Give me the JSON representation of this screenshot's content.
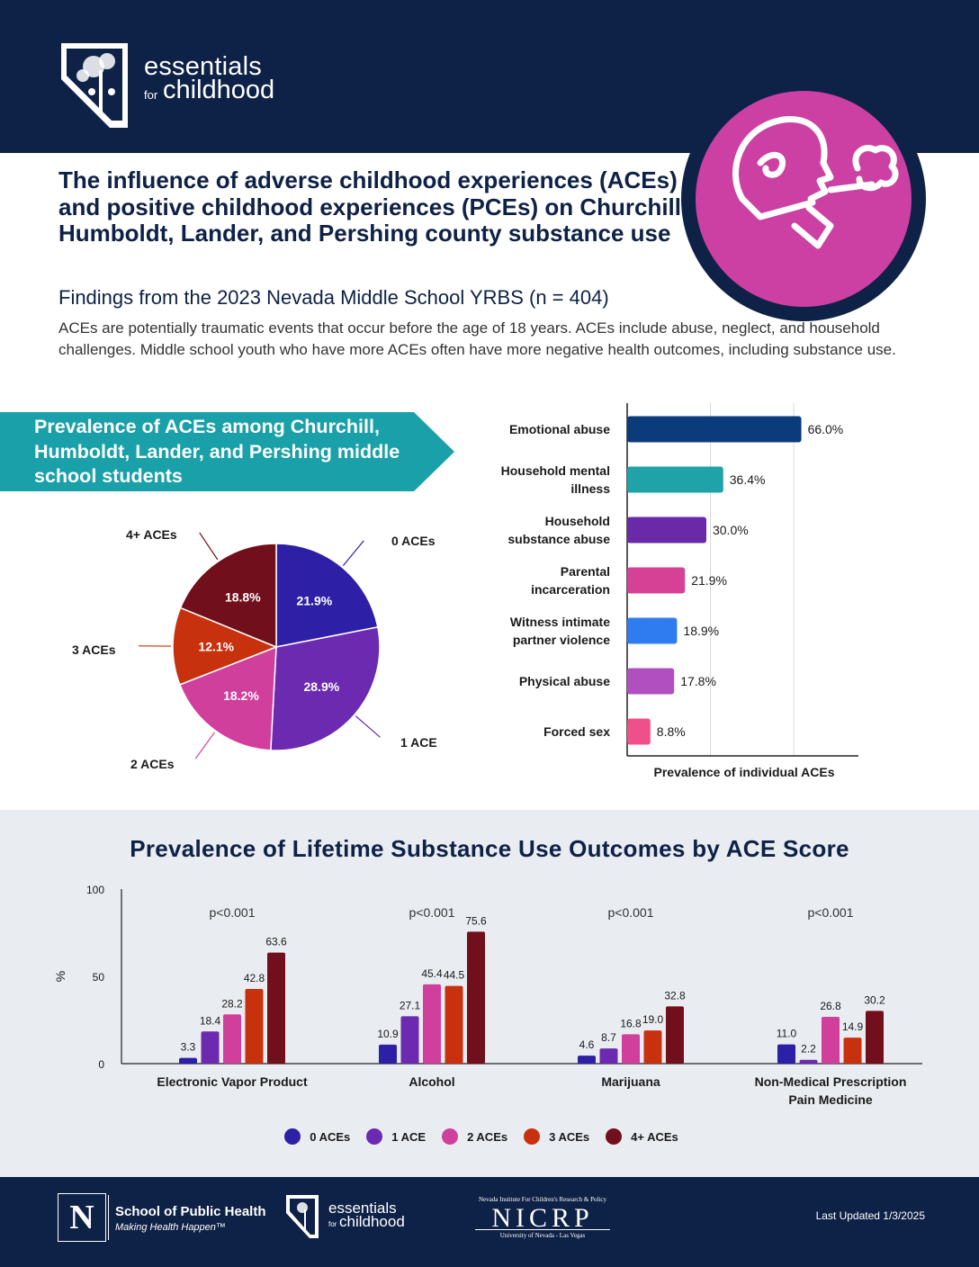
{
  "header": {
    "logo_line1": "essentials",
    "logo_for": "for",
    "logo_line2": "childhood"
  },
  "title": "The influence of adverse childhood experiences (ACEs) and positive childhood experiences (PCEs) on Churchill, Humboldt, Lander, and Pershing county substance use",
  "subtitle": "Findings from the 2023 Nevada Middle School YRBS (n = 404)",
  "intro": "ACEs are potentially traumatic events that occur before the age of 18 years. ACEs include abuse, neglect, and household challenges. Middle school youth who have more ACEs often have more negative health outcomes, including substance use.",
  "aces_banner": "Prevalence of ACEs among Churchill, Humboldt, Lander, and Pershing middle school students",
  "chart_data": [
    {
      "type": "pie",
      "categories": [
        "0 ACEs",
        "1 ACE",
        "2 ACEs",
        "3 ACEs",
        "4+ ACEs"
      ],
      "values": [
        21.9,
        28.9,
        18.2,
        12.1,
        18.8
      ],
      "value_labels": [
        "21.9%",
        "28.9%",
        "18.2%",
        "12.1%",
        "18.8%"
      ],
      "colors": [
        "#2e20a6",
        "#6c2ab0",
        "#d03f9b",
        "#c8310e",
        "#720f1c"
      ]
    },
    {
      "type": "bar",
      "orientation": "horizontal",
      "categories": [
        "Emotional abuse",
        "Household mental illness",
        "Household substance abuse",
        "Parental incarceration",
        "Witness intimate partner violence",
        "Physical abuse",
        "Forced sex"
      ],
      "category_lines": [
        [
          "Emotional abuse"
        ],
        [
          "Household mental",
          "illness"
        ],
        [
          "Household",
          "substance abuse"
        ],
        [
          "Parental",
          "incarceration"
        ],
        [
          "Witness intimate",
          "partner violence"
        ],
        [
          "Physical abuse"
        ],
        [
          "Forced sex"
        ]
      ],
      "values": [
        66.0,
        36.4,
        30.0,
        21.9,
        18.9,
        17.8,
        8.8
      ],
      "value_labels": [
        "66.0%",
        "36.4%",
        "30.0%",
        "21.9%",
        "18.9%",
        "17.8%",
        "8.8%"
      ],
      "colors": [
        "#0c3b7c",
        "#1da3a8",
        "#6a2aa8",
        "#d64195",
        "#2f7bf0",
        "#b14fc0",
        "#f0508a"
      ],
      "xlabel": "Prevalence of individual ACEs",
      "xlim": [
        0,
        70
      ],
      "grid": true
    },
    {
      "type": "bar",
      "title": "Prevalence of Lifetime Substance Use Outcomes by ACE Score",
      "categories": [
        "Electronic Vapor Product",
        "Alcohol",
        "Marijuana",
        "Non-Medical Prescription Pain Medicine"
      ],
      "category_lines": [
        [
          "Electronic Vapor Product"
        ],
        [
          "Alcohol"
        ],
        [
          "Marijuana"
        ],
        [
          "Non-Medical Prescription",
          "Pain Medicine"
        ]
      ],
      "pvalues": [
        "p<0.001",
        "p<0.001",
        "p<0.001",
        "p<0.001"
      ],
      "ylabel": "%",
      "ylim": [
        0,
        100
      ],
      "yticks": [
        "0",
        "50",
        "100"
      ],
      "series": [
        {
          "name": "0 ACEs",
          "color": "#2e20a6",
          "values": [
            3.3,
            10.9,
            4.6,
            11.0
          ],
          "labels": [
            "3.3",
            "10.9",
            "4.6",
            "11.0"
          ]
        },
        {
          "name": "1 ACE",
          "color": "#6c2ab0",
          "values": [
            18.4,
            27.1,
            8.7,
            2.2
          ],
          "labels": [
            "18.4",
            "27.1",
            "8.7",
            "2.2"
          ]
        },
        {
          "name": "2 ACEs",
          "color": "#d03f9b",
          "values": [
            28.2,
            45.4,
            16.8,
            26.8
          ],
          "labels": [
            "28.2",
            "45.4",
            "16.8",
            "26.8"
          ]
        },
        {
          "name": "3 ACEs",
          "color": "#c8310e",
          "values": [
            42.8,
            44.5,
            19.0,
            14.9
          ],
          "labels": [
            "42.8",
            "44.5",
            "19.0",
            "14.9"
          ]
        },
        {
          "name": "4+ ACEs",
          "color": "#720f1c",
          "values": [
            63.6,
            75.6,
            32.8,
            30.2
          ],
          "labels": [
            "63.6",
            "75.6",
            "32.8",
            "30.2"
          ]
        }
      ],
      "legend_position": "bottom"
    }
  ],
  "footer": {
    "nv_letter": "N",
    "sph_title": "School of Public Health",
    "sph_tagline": "Making Health Happen™",
    "logo_line1": "essentials",
    "logo_for": "for",
    "logo_line2": "childhood",
    "nicrp_top": "Nevada Institute For Children's Research & Policy",
    "nicrp_main": "NICRP",
    "nicrp_bottom": "University of Nevada - Las Vegas",
    "updated": "Last Updated 1/3/2025"
  },
  "colors": {
    "navy": "#0e2146",
    "teal": "#1aa0a8",
    "magenta": "#cc3fa3",
    "light_band": "#e9ecf1"
  }
}
